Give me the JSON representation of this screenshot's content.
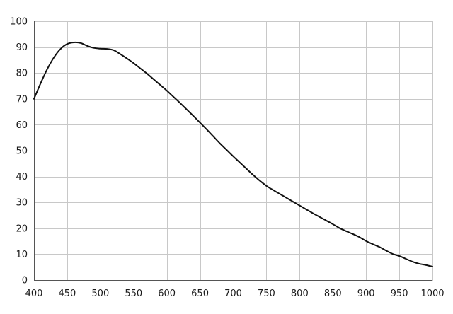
{
  "chart_data": {
    "type": "line",
    "title": "",
    "xlabel": "",
    "ylabel": "",
    "xlim": [
      400,
      1000
    ],
    "ylim": [
      0,
      100
    ],
    "x_ticks": [
      "400",
      "450",
      "500",
      "550",
      "600",
      "650",
      "700",
      "750",
      "800",
      "850",
      "900",
      "950",
      "1000"
    ],
    "y_ticks": [
      "0",
      "10",
      "20",
      "30",
      "40",
      "50",
      "60",
      "70",
      "80",
      "90",
      "100"
    ],
    "grid": true,
    "legend": "none",
    "series": [
      {
        "color": "#111111",
        "points": [
          [
            400,
            70
          ],
          [
            410,
            76
          ],
          [
            420,
            81.5
          ],
          [
            430,
            86
          ],
          [
            440,
            89.3
          ],
          [
            450,
            91.2
          ],
          [
            460,
            91.8
          ],
          [
            470,
            91.6
          ],
          [
            480,
            90.5
          ],
          [
            490,
            89.7
          ],
          [
            500,
            89.4
          ],
          [
            510,
            89.3
          ],
          [
            520,
            88.8
          ],
          [
            530,
            87.3
          ],
          [
            540,
            85.6
          ],
          [
            550,
            83.8
          ],
          [
            560,
            81.8
          ],
          [
            570,
            79.8
          ],
          [
            580,
            77.6
          ],
          [
            590,
            75.4
          ],
          [
            600,
            73.2
          ],
          [
            610,
            70.8
          ],
          [
            620,
            68.4
          ],
          [
            630,
            65.9
          ],
          [
            640,
            63.4
          ],
          [
            650,
            60.8
          ],
          [
            660,
            58.2
          ],
          [
            670,
            55.5
          ],
          [
            680,
            52.8
          ],
          [
            690,
            50.3
          ],
          [
            700,
            47.8
          ],
          [
            710,
            45.4
          ],
          [
            720,
            43.0
          ],
          [
            730,
            40.6
          ],
          [
            740,
            38.4
          ],
          [
            750,
            36.4
          ],
          [
            760,
            34.8
          ],
          [
            770,
            33.3
          ],
          [
            780,
            31.8
          ],
          [
            790,
            30.3
          ],
          [
            800,
            28.8
          ],
          [
            810,
            27.3
          ],
          [
            820,
            25.8
          ],
          [
            830,
            24.4
          ],
          [
            840,
            23.0
          ],
          [
            850,
            21.6
          ],
          [
            860,
            20.1
          ],
          [
            870,
            18.9
          ],
          [
            880,
            17.8
          ],
          [
            890,
            16.6
          ],
          [
            900,
            15.1
          ],
          [
            910,
            13.9
          ],
          [
            920,
            12.8
          ],
          [
            930,
            11.4
          ],
          [
            940,
            10.1
          ],
          [
            950,
            9.3
          ],
          [
            960,
            8.2
          ],
          [
            970,
            7.1
          ],
          [
            980,
            6.3
          ],
          [
            990,
            5.8
          ],
          [
            1000,
            5.2
          ]
        ]
      }
    ]
  }
}
